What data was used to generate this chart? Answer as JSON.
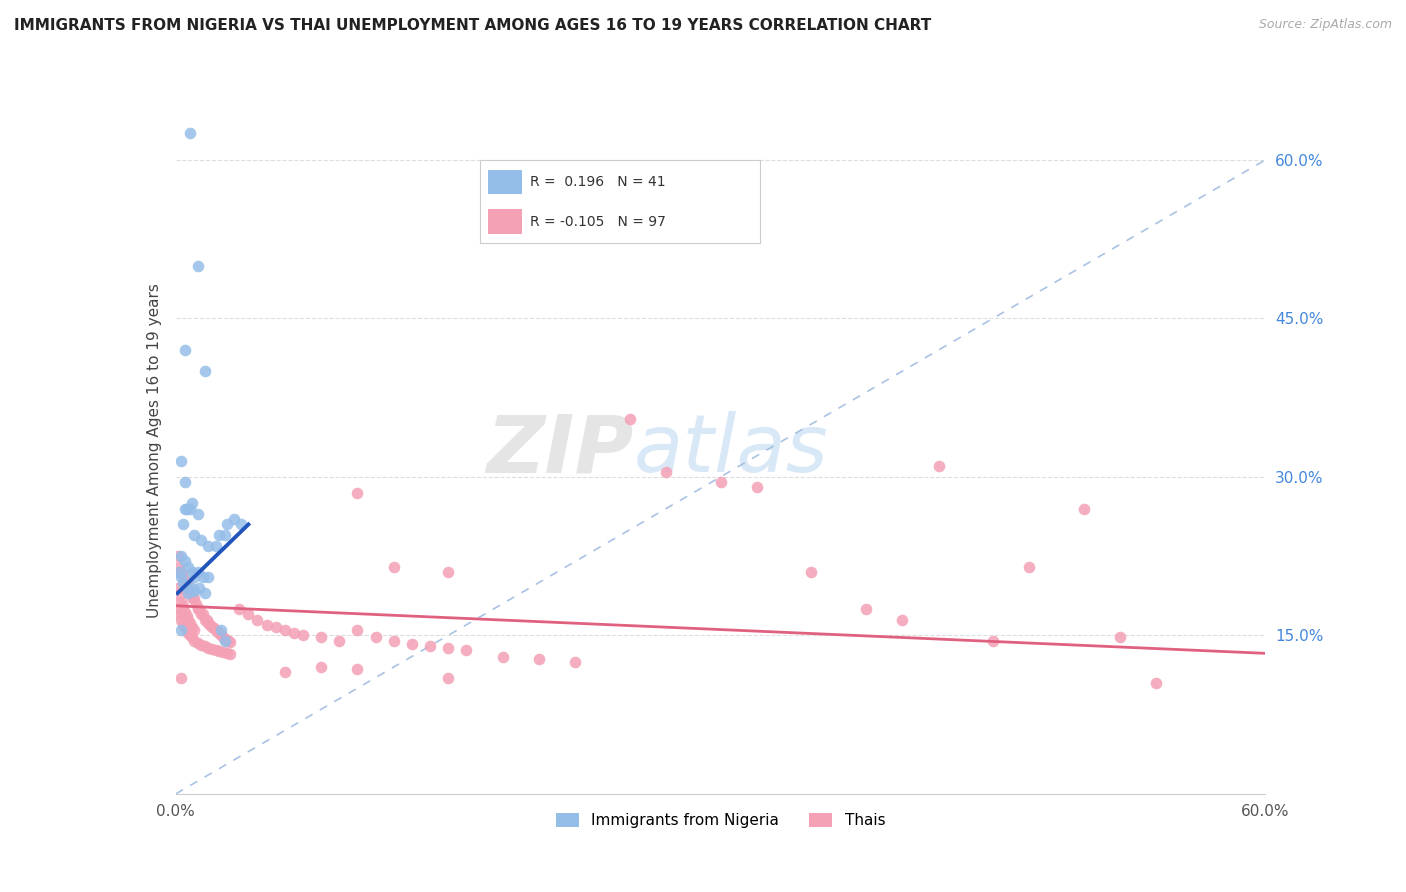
{
  "title": "IMMIGRANTS FROM NIGERIA VS THAI UNEMPLOYMENT AMONG AGES 16 TO 19 YEARS CORRELATION CHART",
  "source": "Source: ZipAtlas.com",
  "ylabel": "Unemployment Among Ages 16 to 19 years",
  "xlim": [
    0.0,
    0.6
  ],
  "ylim": [
    0.0,
    0.65
  ],
  "xticks": [
    0.0,
    0.1,
    0.2,
    0.3,
    0.4,
    0.5,
    0.6
  ],
  "xticklabels": [
    "0.0%",
    "",
    "",
    "",
    "",
    "",
    "60.0%"
  ],
  "yticks_right": [
    0.15,
    0.3,
    0.45,
    0.6
  ],
  "ytick_right_labels": [
    "15.0%",
    "30.0%",
    "45.0%",
    "60.0%"
  ],
  "blue_color": "#94bde8",
  "pink_color": "#f4a0b5",
  "trend_blue": "#2255bb",
  "trend_pink": "#e06080",
  "diag_color": "#a0bce0",
  "watermark_zip": "ZIP",
  "watermark_atlas": "atlas",
  "nigeria_points": [
    [
      0.008,
      0.625
    ],
    [
      0.012,
      0.5
    ],
    [
      0.005,
      0.42
    ],
    [
      0.016,
      0.4
    ],
    [
      0.003,
      0.315
    ],
    [
      0.005,
      0.295
    ],
    [
      0.006,
      0.27
    ],
    [
      0.008,
      0.27
    ],
    [
      0.009,
      0.275
    ],
    [
      0.012,
      0.265
    ],
    [
      0.005,
      0.27
    ],
    [
      0.004,
      0.255
    ],
    [
      0.01,
      0.245
    ],
    [
      0.014,
      0.24
    ],
    [
      0.018,
      0.235
    ],
    [
      0.022,
      0.235
    ],
    [
      0.003,
      0.225
    ],
    [
      0.005,
      0.22
    ],
    [
      0.007,
      0.215
    ],
    [
      0.009,
      0.21
    ],
    [
      0.01,
      0.205
    ],
    [
      0.012,
      0.21
    ],
    [
      0.015,
      0.205
    ],
    [
      0.018,
      0.205
    ],
    [
      0.024,
      0.245
    ],
    [
      0.027,
      0.245
    ],
    [
      0.028,
      0.255
    ],
    [
      0.032,
      0.26
    ],
    [
      0.036,
      0.255
    ],
    [
      0.002,
      0.21
    ],
    [
      0.003,
      0.205
    ],
    [
      0.004,
      0.2
    ],
    [
      0.006,
      0.195
    ],
    [
      0.007,
      0.19
    ],
    [
      0.009,
      0.195
    ],
    [
      0.01,
      0.192
    ],
    [
      0.013,
      0.195
    ],
    [
      0.016,
      0.19
    ],
    [
      0.025,
      0.155
    ],
    [
      0.027,
      0.145
    ],
    [
      0.003,
      0.155
    ]
  ],
  "thai_points": [
    [
      0.001,
      0.225
    ],
    [
      0.002,
      0.215
    ],
    [
      0.003,
      0.21
    ],
    [
      0.004,
      0.205
    ],
    [
      0.005,
      0.195
    ],
    [
      0.006,
      0.2
    ],
    [
      0.007,
      0.19
    ],
    [
      0.008,
      0.19
    ],
    [
      0.009,
      0.185
    ],
    [
      0.01,
      0.185
    ],
    [
      0.011,
      0.18
    ],
    [
      0.012,
      0.175
    ],
    [
      0.013,
      0.175
    ],
    [
      0.014,
      0.17
    ],
    [
      0.015,
      0.17
    ],
    [
      0.016,
      0.165
    ],
    [
      0.017,
      0.165
    ],
    [
      0.018,
      0.162
    ],
    [
      0.019,
      0.16
    ],
    [
      0.02,
      0.158
    ],
    [
      0.021,
      0.157
    ],
    [
      0.022,
      0.155
    ],
    [
      0.023,
      0.153
    ],
    [
      0.024,
      0.152
    ],
    [
      0.025,
      0.15
    ],
    [
      0.026,
      0.148
    ],
    [
      0.027,
      0.147
    ],
    [
      0.028,
      0.146
    ],
    [
      0.029,
      0.145
    ],
    [
      0.03,
      0.144
    ],
    [
      0.001,
      0.195
    ],
    [
      0.002,
      0.188
    ],
    [
      0.003,
      0.182
    ],
    [
      0.004,
      0.178
    ],
    [
      0.005,
      0.172
    ],
    [
      0.006,
      0.168
    ],
    [
      0.007,
      0.165
    ],
    [
      0.008,
      0.162
    ],
    [
      0.009,
      0.158
    ],
    [
      0.01,
      0.155
    ],
    [
      0.001,
      0.175
    ],
    [
      0.002,
      0.17
    ],
    [
      0.003,
      0.165
    ],
    [
      0.004,
      0.16
    ],
    [
      0.005,
      0.158
    ],
    [
      0.006,
      0.155
    ],
    [
      0.007,
      0.152
    ],
    [
      0.008,
      0.15
    ],
    [
      0.009,
      0.148
    ],
    [
      0.01,
      0.145
    ],
    [
      0.012,
      0.143
    ],
    [
      0.014,
      0.141
    ],
    [
      0.016,
      0.14
    ],
    [
      0.018,
      0.138
    ],
    [
      0.02,
      0.137
    ],
    [
      0.022,
      0.136
    ],
    [
      0.024,
      0.135
    ],
    [
      0.026,
      0.134
    ],
    [
      0.028,
      0.133
    ],
    [
      0.03,
      0.132
    ],
    [
      0.035,
      0.175
    ],
    [
      0.04,
      0.17
    ],
    [
      0.045,
      0.165
    ],
    [
      0.05,
      0.16
    ],
    [
      0.055,
      0.158
    ],
    [
      0.06,
      0.155
    ],
    [
      0.065,
      0.152
    ],
    [
      0.07,
      0.15
    ],
    [
      0.08,
      0.148
    ],
    [
      0.09,
      0.145
    ],
    [
      0.1,
      0.155
    ],
    [
      0.11,
      0.148
    ],
    [
      0.12,
      0.145
    ],
    [
      0.13,
      0.142
    ],
    [
      0.14,
      0.14
    ],
    [
      0.15,
      0.138
    ],
    [
      0.16,
      0.136
    ],
    [
      0.18,
      0.13
    ],
    [
      0.2,
      0.128
    ],
    [
      0.22,
      0.125
    ],
    [
      0.25,
      0.355
    ],
    [
      0.27,
      0.305
    ],
    [
      0.3,
      0.295
    ],
    [
      0.32,
      0.29
    ],
    [
      0.35,
      0.21
    ],
    [
      0.38,
      0.175
    ],
    [
      0.4,
      0.165
    ],
    [
      0.42,
      0.31
    ],
    [
      0.45,
      0.145
    ],
    [
      0.47,
      0.215
    ],
    [
      0.1,
      0.285
    ],
    [
      0.12,
      0.215
    ],
    [
      0.15,
      0.21
    ],
    [
      0.003,
      0.11
    ],
    [
      0.15,
      0.11
    ],
    [
      0.5,
      0.27
    ],
    [
      0.52,
      0.148
    ],
    [
      0.54,
      0.105
    ],
    [
      0.06,
      0.115
    ],
    [
      0.08,
      0.12
    ],
    [
      0.1,
      0.118
    ]
  ],
  "ng_trend_x": [
    0.001,
    0.04
  ],
  "ng_trend_y": [
    0.19,
    0.255
  ],
  "th_trend_x": [
    0.0,
    0.6
  ],
  "th_trend_y": [
    0.178,
    0.133
  ]
}
